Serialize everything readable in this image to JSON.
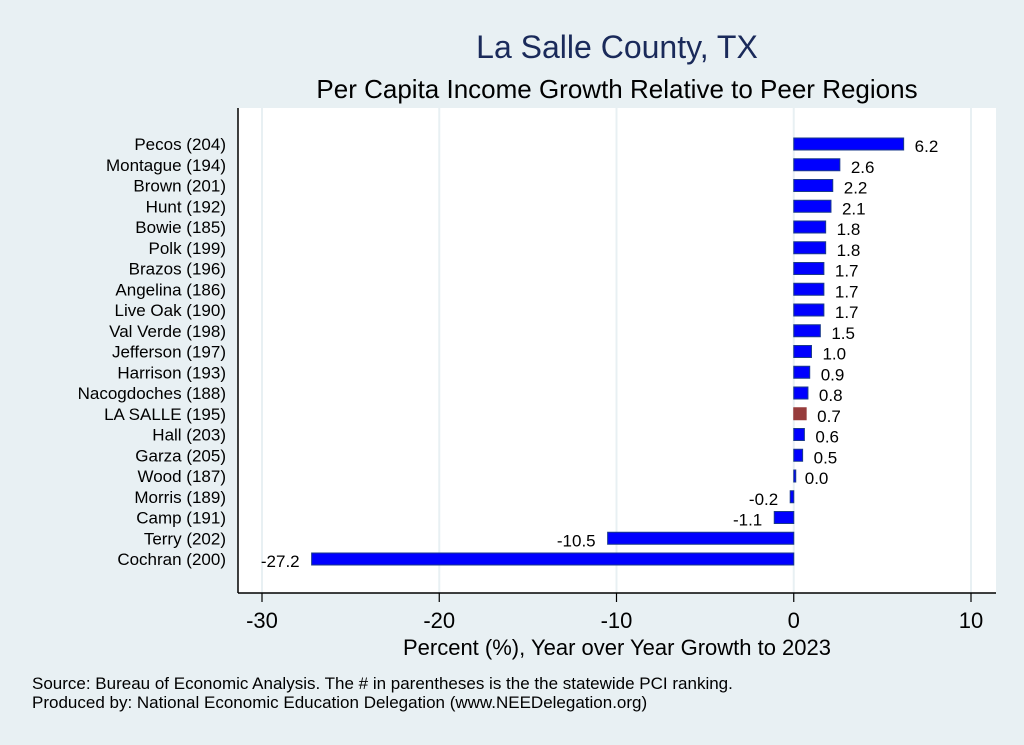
{
  "chart_data": {
    "type": "bar",
    "orientation": "horizontal",
    "title": "La Salle County, TX",
    "subtitle": "Per Capita Income Growth Relative to Peer Regions",
    "xlabel": "Percent (%), Year over Year Growth to 2023",
    "ylabel": "",
    "xlim": [
      -31.5,
      11.5
    ],
    "xticks": [
      -30,
      -20,
      -10,
      0,
      10
    ],
    "xtick_labels": [
      "-30",
      "-20",
      "-10",
      "0",
      "10"
    ],
    "grid": true,
    "categories": [
      "Pecos (204)",
      "Montague (194)",
      "Brown (201)",
      "Hunt (192)",
      "Bowie (185)",
      "Polk (199)",
      "Brazos (196)",
      "Angelina (186)",
      "Live Oak (190)",
      "Val Verde (198)",
      "Jefferson (197)",
      "Harrison (193)",
      "Nacogdoches (188)",
      "LA SALLE (195)",
      "Hall (203)",
      "Garza (205)",
      "Wood (187)",
      "Morris (189)",
      "Camp (191)",
      "Terry (202)",
      "Cochran (200)"
    ],
    "values": [
      6.2,
      2.6,
      2.2,
      2.1,
      1.8,
      1.8,
      1.7,
      1.7,
      1.7,
      1.5,
      1.0,
      0.9,
      0.8,
      0.7,
      0.6,
      0.5,
      0.0,
      -0.2,
      -1.1,
      -10.5,
      -27.2
    ],
    "value_labels": [
      "6.2",
      "2.6",
      "2.2",
      "2.1",
      "1.8",
      "1.8",
      "1.7",
      "1.7",
      "1.7",
      "1.5",
      "1.0",
      "0.9",
      "0.8",
      "0.7",
      "0.6",
      "0.5",
      "0.0",
      "-0.2",
      "-1.1",
      "-10.5",
      "-27.2"
    ],
    "highlight_category": "LA SALLE (195)",
    "colors": {
      "bar": "#0000ff",
      "bar_outline": "#1a3a8a",
      "highlight": "#963c3c",
      "background": "#e8f0f3",
      "plot_background": "#ffffff",
      "grid": "#e8f0f3",
      "title": "#1a2a5a"
    },
    "notes": [
      "Source: Bureau of Economic Analysis. The # in parentheses is the the statewide PCI ranking.",
      "Produced by: National Economic Education Delegation (www.NEEDelegation.org)"
    ]
  }
}
